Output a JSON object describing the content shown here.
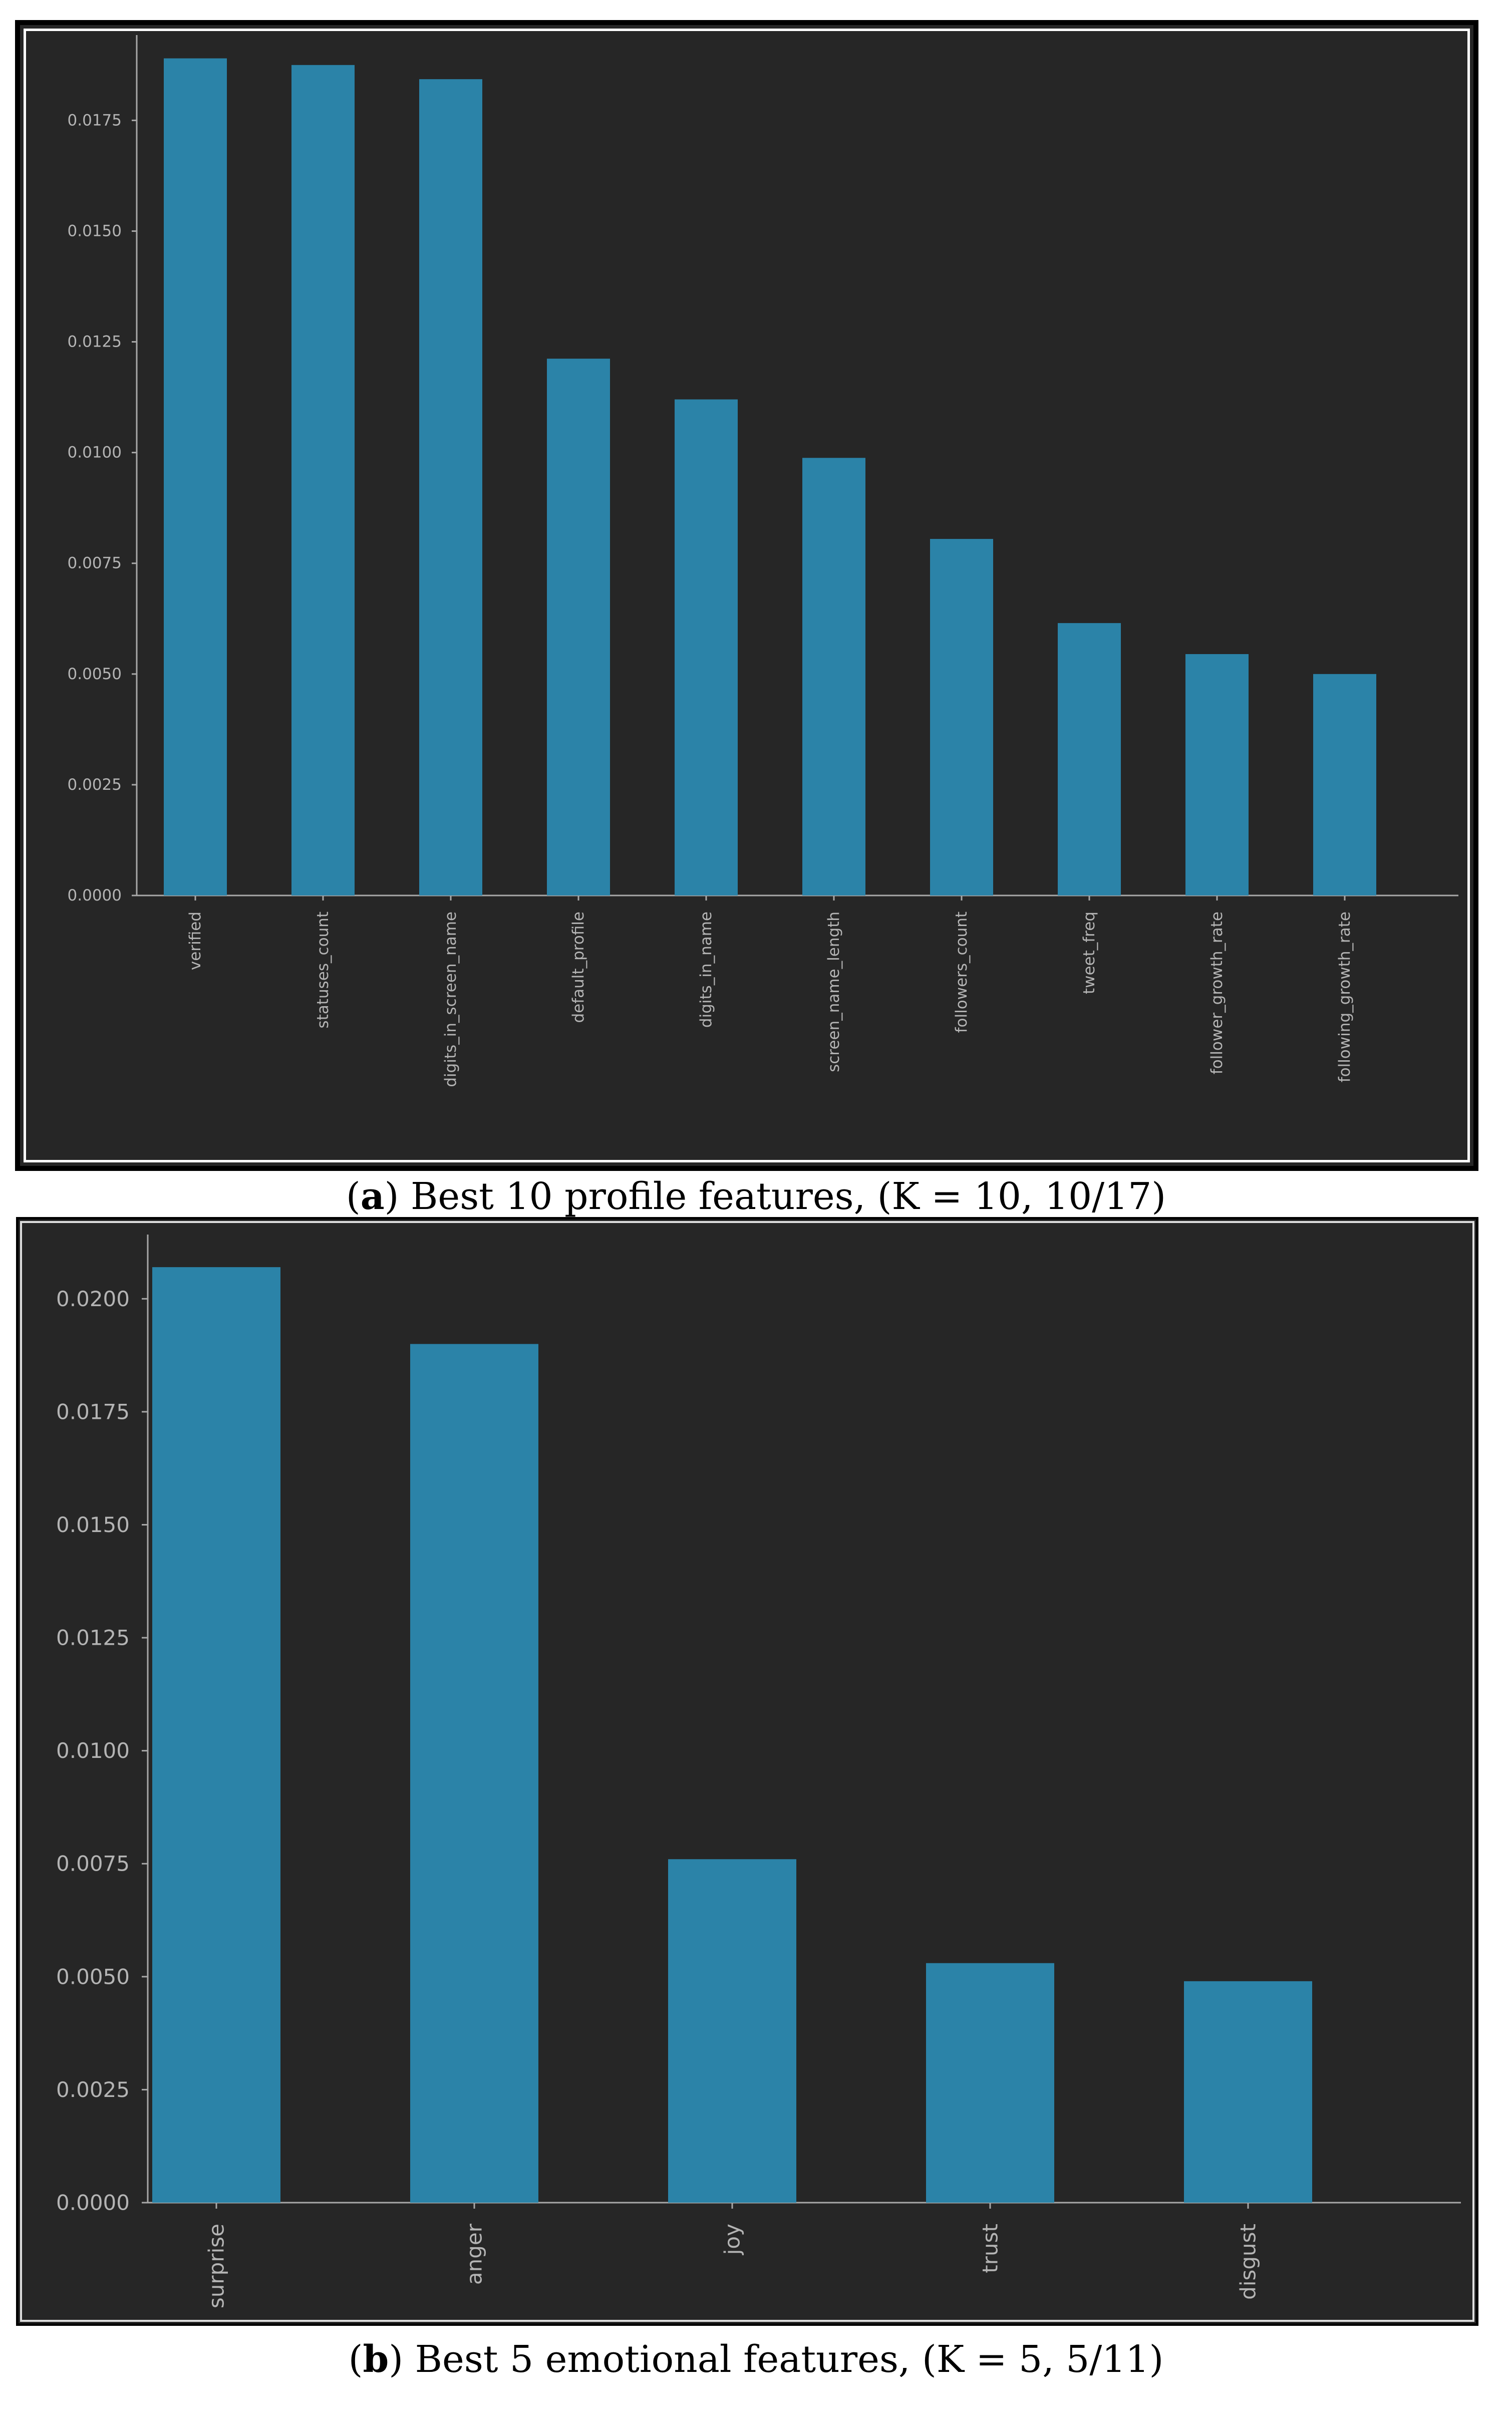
{
  "captions": {
    "a": {
      "open": "(",
      "letter": "a",
      "text": ") Best 10 profile features, (K = 10, 10/17)"
    },
    "b": {
      "open": "(",
      "letter": "b",
      "text": ") Best 5 emotional features, (K = 5, 5/11)"
    }
  },
  "colors": {
    "bar": "#2b83a8",
    "axis": "#a8a8a8",
    "tick_text": "#b4b4b4",
    "background": "#262626"
  },
  "chart_data": [
    {
      "id": "a",
      "type": "bar",
      "title": "",
      "xlabel": "",
      "ylabel": "",
      "categories": [
        "verified",
        "statuses_count",
        "digits_in_screen_name",
        "default_profile",
        "digits_in_name",
        "screen_name_length",
        "followers_count",
        "tweet_freq",
        "follower_growth_rate",
        "following_growth_rate"
      ],
      "values": [
        0.0189,
        0.01875,
        0.01843,
        0.01212,
        0.0112,
        0.00988,
        0.00805,
        0.00615,
        0.00545,
        0.005
      ],
      "yticks": [
        "0.0000",
        "0.0025",
        "0.0050",
        "0.0075",
        "0.0100",
        "0.0125",
        "0.0150",
        "0.0175"
      ],
      "ylim": [
        0,
        0.0192
      ],
      "grid": false,
      "legend": "none"
    },
    {
      "id": "b",
      "type": "bar",
      "title": "",
      "xlabel": "",
      "ylabel": "",
      "categories": [
        "surprise",
        "anger",
        "joy",
        "trust",
        "disgust"
      ],
      "values": [
        0.0207,
        0.019,
        0.0076,
        0.0053,
        0.0049
      ],
      "yticks": [
        "0.0000",
        "0.0025",
        "0.0050",
        "0.0075",
        "0.0100",
        "0.0125",
        "0.0150",
        "0.0175",
        "0.0200"
      ],
      "ylim": [
        0,
        0.0212
      ],
      "grid": false,
      "legend": "none"
    }
  ]
}
